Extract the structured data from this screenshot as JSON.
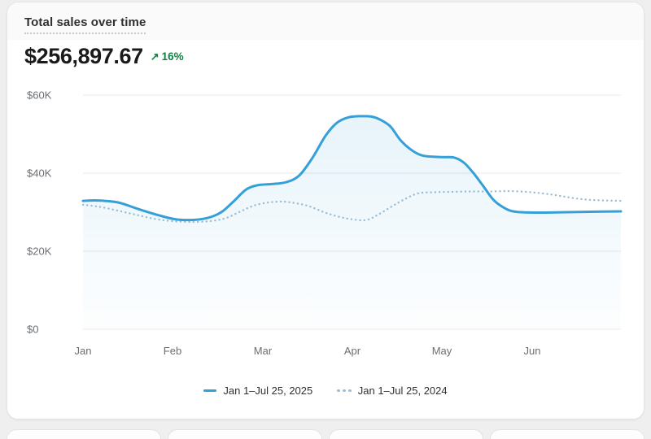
{
  "card": {
    "title": "Total sales over time",
    "metric": {
      "value": "$256,897.67",
      "change": "16%",
      "trend": "up"
    },
    "legend": [
      {
        "label": "Jan 1–Jul 25, 2025",
        "style": "solid"
      },
      {
        "label": "Jan 1–Jul 25, 2024",
        "style": "dotted"
      }
    ]
  },
  "icons": {
    "trend_up": "↗"
  },
  "colors": {
    "series_2025": "#35A0D8",
    "series_2024": "#9BBDD3",
    "change_green": "#0E8345",
    "grid": "#E8E8E8",
    "area_fill_top": "rgba(53,160,216,0.13)",
    "area_fill_bottom": "rgba(53,160,216,0.01)"
  },
  "chart_data": {
    "type": "line",
    "title": "Total sales over time",
    "x_domain": [
      "Jan 1",
      "Jul 25"
    ],
    "x_ticks": [
      "Jan",
      "Feb",
      "Mar",
      "Apr",
      "May",
      "Jun"
    ],
    "x_tick_t": [
      0,
      0.166,
      0.334,
      0.501,
      0.667,
      0.835
    ],
    "y_ticks": [
      "$60K",
      "$40K",
      "$20K",
      "$0"
    ],
    "y_tick_values": [
      60000,
      40000,
      20000,
      0
    ],
    "ylim": [
      0,
      60000
    ],
    "grid": "horizontal",
    "legend_position": "bottom",
    "series": [
      {
        "name": "Jan 1–Jul 25, 2025",
        "style": "solid",
        "color_key": "series_2025",
        "area_fill": true,
        "points": [
          [
            0.0,
            32900
          ],
          [
            0.027,
            33000
          ],
          [
            0.065,
            32500
          ],
          [
            0.103,
            30800
          ],
          [
            0.141,
            29200
          ],
          [
            0.171,
            28200
          ],
          [
            0.201,
            28000
          ],
          [
            0.231,
            28500
          ],
          [
            0.257,
            30000
          ],
          [
            0.281,
            32900
          ],
          [
            0.303,
            35800
          ],
          [
            0.324,
            36900
          ],
          [
            0.351,
            37200
          ],
          [
            0.378,
            37700
          ],
          [
            0.402,
            39400
          ],
          [
            0.427,
            44000
          ],
          [
            0.451,
            49600
          ],
          [
            0.472,
            52900
          ],
          [
            0.493,
            54300
          ],
          [
            0.514,
            54600
          ],
          [
            0.536,
            54500
          ],
          [
            0.554,
            53600
          ],
          [
            0.572,
            51900
          ],
          [
            0.59,
            48500
          ],
          [
            0.61,
            46000
          ],
          [
            0.629,
            44600
          ],
          [
            0.651,
            44200
          ],
          [
            0.67,
            44100
          ],
          [
            0.69,
            44000
          ],
          [
            0.708,
            42700
          ],
          [
            0.726,
            40000
          ],
          [
            0.744,
            36700
          ],
          [
            0.761,
            33500
          ],
          [
            0.776,
            31700
          ],
          [
            0.794,
            30400
          ],
          [
            0.814,
            30000
          ],
          [
            0.852,
            29900
          ],
          [
            0.897,
            30000
          ],
          [
            0.942,
            30100
          ],
          [
            1.0,
            30200
          ]
        ]
      },
      {
        "name": "Jan 1–Jul 25, 2024",
        "style": "dotted",
        "color_key": "series_2024",
        "area_fill": false,
        "points": [
          [
            0.0,
            31900
          ],
          [
            0.03,
            31400
          ],
          [
            0.065,
            30400
          ],
          [
            0.1,
            29300
          ],
          [
            0.133,
            28300
          ],
          [
            0.166,
            27700
          ],
          [
            0.201,
            27500
          ],
          [
            0.236,
            27700
          ],
          [
            0.266,
            28500
          ],
          [
            0.293,
            30200
          ],
          [
            0.318,
            31700
          ],
          [
            0.345,
            32500
          ],
          [
            0.372,
            32700
          ],
          [
            0.396,
            32300
          ],
          [
            0.421,
            31500
          ],
          [
            0.448,
            30000
          ],
          [
            0.474,
            28900
          ],
          [
            0.499,
            28200
          ],
          [
            0.527,
            28000
          ],
          [
            0.549,
            29400
          ],
          [
            0.572,
            31300
          ],
          [
            0.595,
            33100
          ],
          [
            0.622,
            34800
          ],
          [
            0.651,
            35100
          ],
          [
            0.681,
            35200
          ],
          [
            0.716,
            35300
          ],
          [
            0.753,
            35300
          ],
          [
            0.791,
            35400
          ],
          [
            0.826,
            35200
          ],
          [
            0.856,
            34800
          ],
          [
            0.886,
            34200
          ],
          [
            0.917,
            33500
          ],
          [
            0.95,
            33100
          ],
          [
            1.0,
            32900
          ]
        ]
      }
    ]
  }
}
